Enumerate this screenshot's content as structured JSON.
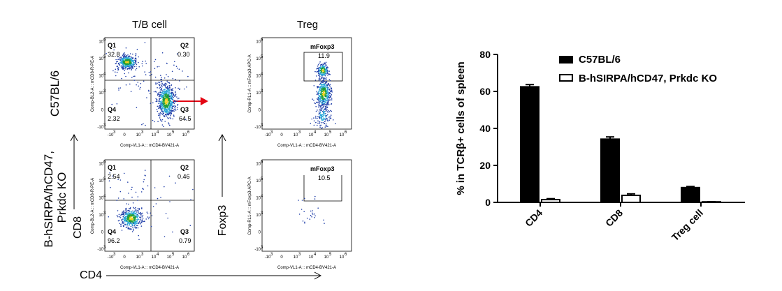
{
  "flow_panel": {
    "column_titles": [
      "T/B cell",
      "Treg"
    ],
    "row_labels": [
      "C57BL/6",
      "B-hSIRPA/hCD47,\nPrkdc KO"
    ],
    "axis_labels": {
      "cd8": "CD8",
      "foxp3": "Foxp3",
      "cd4": "CD4"
    },
    "ylabels": {
      "tb": "Comp-BL2-A :: mCD8-R-PE-A",
      "treg": "Comp-RL1-A :: mFoxp3-APC-A"
    },
    "xlabel": "Comp-VL1-A :: mCD4-BV421-A",
    "tick_labels": [
      "-10",
      "0",
      "10",
      "10",
      "10",
      "10"
    ],
    "tick_exponents": [
      "3",
      "3",
      "4",
      "5",
      "6"
    ],
    "treg_gate_name": "mFoxp3",
    "plots": [
      {
        "id": "wt-tb",
        "quadrants": [
          {
            "name": "Q1",
            "value": "32.8"
          },
          {
            "name": "Q2",
            "value": "0.30"
          },
          {
            "name": "Q4",
            "value": "2.32"
          },
          {
            "name": "Q3",
            "value": "64.5"
          }
        ]
      },
      {
        "id": "ko-tb",
        "quadrants": [
          {
            "name": "Q1",
            "value": "2.54"
          },
          {
            "name": "Q2",
            "value": "0.46"
          },
          {
            "name": "Q4",
            "value": "96.2"
          },
          {
            "name": "Q3",
            "value": "0.79"
          }
        ]
      },
      {
        "id": "wt-treg",
        "gate_value": "11.9"
      },
      {
        "id": "ko-treg",
        "gate_value": "10.5"
      }
    ],
    "colors": {
      "arrow": "#e30613",
      "dense": "#1f9e3a",
      "mid": "#2aa8d8",
      "sparse": "#1e3da8",
      "hot": "#f2d21b"
    }
  },
  "chart_data": {
    "type": "bar",
    "categories": [
      "CD4",
      "CD8",
      "Treg cell"
    ],
    "series": [
      {
        "name": "C57BL/6",
        "values": [
          62.5,
          34.2,
          8.0
        ],
        "errors": [
          1.2,
          1.2,
          0.6
        ],
        "fill": "#000000"
      },
      {
        "name": "B-hSIRPA/hCD47, Prkdc KO",
        "values": [
          1.5,
          3.8,
          0.3
        ],
        "errors": [
          0.5,
          0.8,
          0.1
        ],
        "fill": "#ffffff"
      }
    ],
    "ylabel": "% in TCRβ+ cells of spleen",
    "ylim": [
      0,
      80
    ],
    "yticks": [
      "0",
      "20",
      "40",
      "60",
      "80"
    ],
    "legend": "top-right",
    "grid": false
  }
}
